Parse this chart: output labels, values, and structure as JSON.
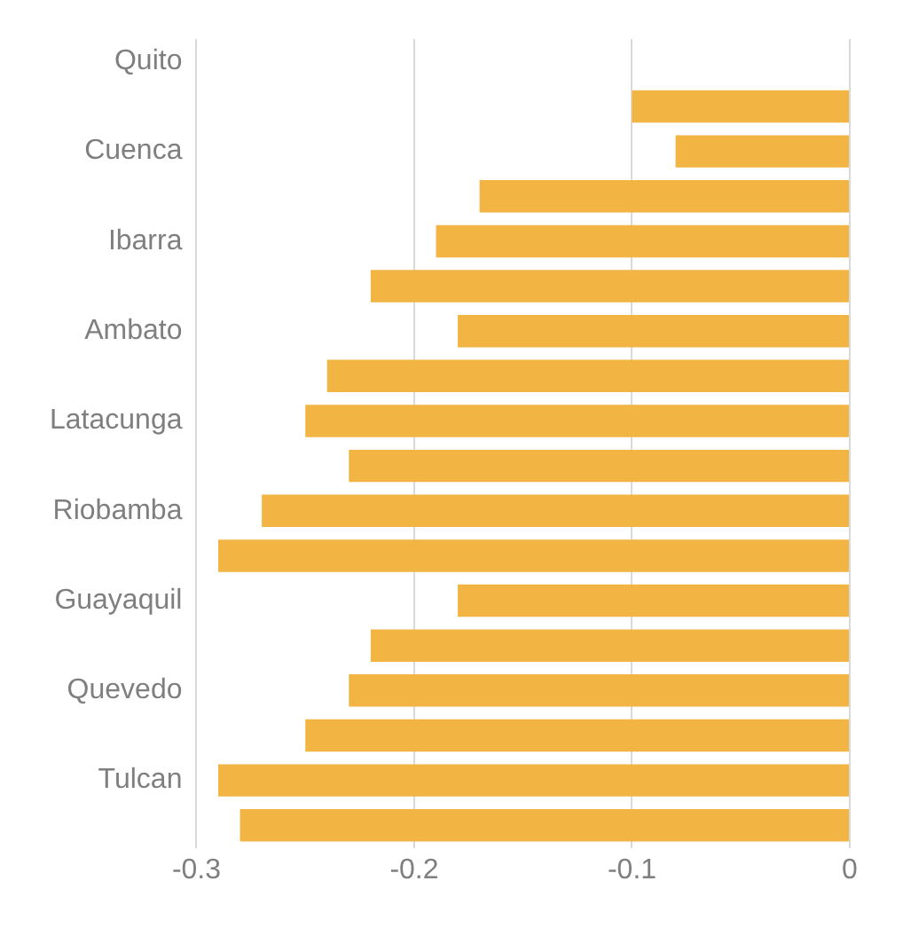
{
  "chart_data": {
    "type": "bar",
    "orientation": "horizontal",
    "categories": [
      "Quito",
      null,
      "Cuenca",
      null,
      "Ibarra",
      null,
      "Ambato",
      null,
      "Latacunga",
      null,
      "Riobamba",
      null,
      "Guayaquil",
      null,
      "Quevedo",
      null,
      "Tulcan",
      null
    ],
    "values": [
      null,
      -0.1,
      -0.08,
      -0.17,
      -0.19,
      -0.22,
      -0.18,
      -0.24,
      -0.25,
      -0.23,
      -0.27,
      -0.29,
      -0.18,
      -0.22,
      -0.23,
      -0.25,
      -0.29,
      -0.28
    ],
    "color": "#f2b544",
    "xlim": [
      -0.3,
      0
    ],
    "xticks": [
      -0.3,
      -0.2,
      -0.1,
      0
    ],
    "grid": "x",
    "legend": false
  }
}
